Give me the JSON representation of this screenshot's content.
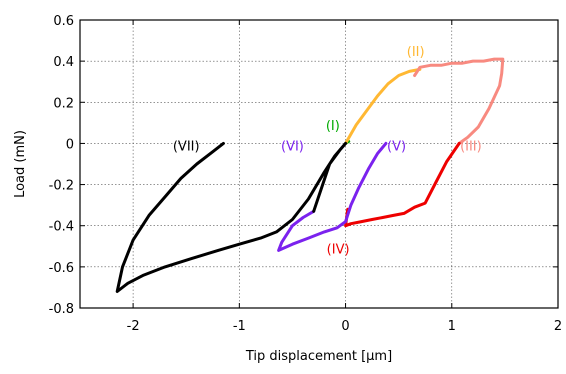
{
  "chart_data": {
    "type": "line",
    "xlabel": "Tip displacement [µm]",
    "ylabel": "Load (mN)",
    "xlim": [
      -2.5,
      2
    ],
    "ylim": [
      -0.8,
      0.6
    ],
    "xticks": [
      -2,
      -1,
      0,
      1,
      2
    ],
    "xtick_labels": [
      "-2",
      "-1",
      "0",
      "1",
      "2"
    ],
    "yticks": [
      -0.8,
      -0.6,
      -0.4,
      -0.2,
      0,
      0.2,
      0.4,
      0.6
    ],
    "ytick_labels": [
      "-0.8",
      "-0.6",
      "-0.4",
      "-0.2",
      "0",
      "0.2",
      "0.4",
      "0.6"
    ],
    "grid": true,
    "series": [
      {
        "color": "#00aa00",
        "x": [
          0.0,
          0.03
        ],
        "y": [
          0.0,
          0.01
        ]
      },
      {
        "color": "#ffb833",
        "x": [
          0.0,
          0.1,
          0.2,
          0.3,
          0.4,
          0.5,
          0.6,
          0.7
        ],
        "y": [
          0.0,
          0.09,
          0.16,
          0.23,
          0.29,
          0.33,
          0.35,
          0.36
        ]
      },
      {
        "color": "#f88a80",
        "x": [
          0.65,
          0.7,
          0.8,
          0.9,
          1.0,
          1.1,
          1.2,
          1.3,
          1.4,
          1.48,
          1.47,
          1.45,
          1.35,
          1.25,
          1.15,
          1.07
        ],
        "y": [
          0.33,
          0.37,
          0.38,
          0.38,
          0.39,
          0.39,
          0.4,
          0.4,
          0.41,
          0.41,
          0.34,
          0.28,
          0.17,
          0.08,
          0.03,
          0.0
        ]
      },
      {
        "color": "#ee0000",
        "x": [
          1.07,
          0.95,
          0.85,
          0.75,
          0.65,
          0.55,
          0.45,
          0.35,
          0.25,
          0.15,
          0.05,
          0.0,
          0.02
        ],
        "y": [
          0.0,
          -0.09,
          -0.19,
          -0.29,
          -0.31,
          -0.34,
          -0.35,
          -0.36,
          -0.37,
          -0.38,
          -0.39,
          -0.4,
          -0.32
        ]
      },
      {
        "color": "#7b22ee",
        "x": [
          0.38,
          0.3,
          0.22,
          0.12,
          0.05,
          0.0,
          -0.08,
          -0.2,
          -0.35,
          -0.5,
          -0.63,
          -0.6,
          -0.5,
          -0.4,
          -0.3
        ],
        "y": [
          0.0,
          -0.05,
          -0.12,
          -0.22,
          -0.3,
          -0.38,
          -0.41,
          -0.43,
          -0.46,
          -0.49,
          -0.52,
          -0.48,
          -0.4,
          -0.36,
          -0.33
        ]
      },
      {
        "color": "#000000",
        "x": [
          -0.3,
          -0.15,
          -0.05,
          0.0,
          -0.1,
          -0.2,
          -0.35,
          -0.5,
          -0.65,
          -0.8,
          -1.0,
          -1.2,
          -1.45,
          -1.7,
          -1.9,
          -2.05,
          -2.15,
          -2.1,
          -2.0,
          -1.85,
          -1.7,
          -1.55,
          -1.4,
          -1.25,
          -1.15
        ],
        "y": [
          -0.33,
          -0.1,
          -0.03,
          0.0,
          -0.06,
          -0.14,
          -0.27,
          -0.37,
          -0.43,
          -0.46,
          -0.49,
          -0.52,
          -0.56,
          -0.6,
          -0.64,
          -0.68,
          -0.72,
          -0.6,
          -0.47,
          -0.35,
          -0.26,
          -0.17,
          -0.1,
          -0.04,
          0.0
        ]
      }
    ],
    "annotations": [
      {
        "text": "(I)",
        "x": -0.12,
        "y": 0.09,
        "color": "#00aa00"
      },
      {
        "text": "(II)",
        "x": 0.66,
        "y": 0.45,
        "color": "#ffb833"
      },
      {
        "text": "(III)",
        "x": 1.18,
        "y": -0.01,
        "color": "#f88a80"
      },
      {
        "text": "(IV)",
        "x": -0.07,
        "y": -0.51,
        "color": "#ee0000"
      },
      {
        "text": "(V)",
        "x": 0.48,
        "y": -0.01,
        "color": "#7b22ee"
      },
      {
        "text": "(VI)",
        "x": -0.5,
        "y": -0.01,
        "color": "#7b22ee"
      },
      {
        "text": "(VII)",
        "x": -1.5,
        "y": -0.01,
        "color": "#000000"
      }
    ]
  }
}
